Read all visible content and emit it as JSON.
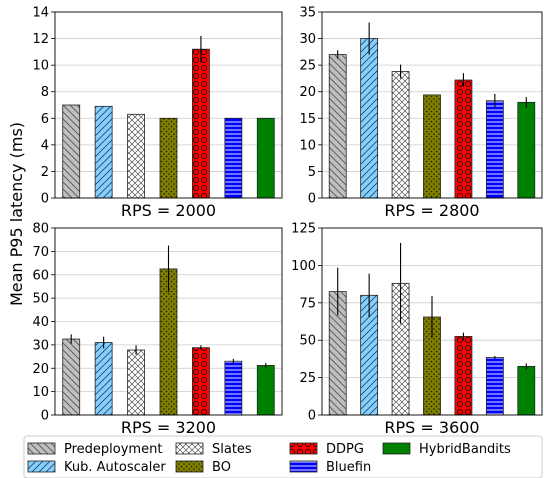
{
  "ylabel": "Mean P95 latency (ms)",
  "chart_data": [
    {
      "type": "bar",
      "title": "RPS = 2000",
      "ylim": [
        0,
        14
      ],
      "yticks": [
        0,
        2,
        4,
        6,
        8,
        10,
        12,
        14
      ],
      "grid": true,
      "series": [
        {
          "name": "Predeployment",
          "value": 7.0,
          "err": 0.0
        },
        {
          "name": "Kub. Autoscaler",
          "value": 6.9,
          "err": 0.0
        },
        {
          "name": "Slates",
          "value": 6.3,
          "err": 0.0
        },
        {
          "name": "BO",
          "value": 6.0,
          "err": 0.0
        },
        {
          "name": "DDPG",
          "value": 11.2,
          "err": 1.0
        },
        {
          "name": "Bluefin",
          "value": 6.0,
          "err": 0.0
        },
        {
          "name": "HybridBandits",
          "value": 6.0,
          "err": 0.0
        }
      ]
    },
    {
      "type": "bar",
      "title": "RPS = 2800",
      "ylim": [
        0,
        35
      ],
      "yticks": [
        0,
        5,
        10,
        15,
        20,
        25,
        30,
        35
      ],
      "grid": true,
      "series": [
        {
          "name": "Predeployment",
          "value": 27.0,
          "err": 0.8
        },
        {
          "name": "Kub. Autoscaler",
          "value": 30.0,
          "err": 3.0
        },
        {
          "name": "Slates",
          "value": 23.8,
          "err": 1.3
        },
        {
          "name": "BO",
          "value": 19.4,
          "err": 0.0
        },
        {
          "name": "DDPG",
          "value": 22.2,
          "err": 1.3
        },
        {
          "name": "Bluefin",
          "value": 18.3,
          "err": 1.3
        },
        {
          "name": "HybridBandits",
          "value": 18.0,
          "err": 1.0
        }
      ]
    },
    {
      "type": "bar",
      "title": "RPS = 3200",
      "ylim": [
        0,
        80
      ],
      "yticks": [
        0,
        10,
        20,
        30,
        40,
        50,
        60,
        70,
        80
      ],
      "grid": true,
      "series": [
        {
          "name": "Predeployment",
          "value": 32.5,
          "err": 2.0
        },
        {
          "name": "Kub. Autoscaler",
          "value": 31.0,
          "err": 2.5
        },
        {
          "name": "Slates",
          "value": 27.8,
          "err": 2.0
        },
        {
          "name": "BO",
          "value": 62.5,
          "err": 10.0
        },
        {
          "name": "DDPG",
          "value": 28.8,
          "err": 1.0
        },
        {
          "name": "Bluefin",
          "value": 23.0,
          "err": 1.0
        },
        {
          "name": "HybridBandits",
          "value": 21.2,
          "err": 1.0
        }
      ]
    },
    {
      "type": "bar",
      "title": "RPS = 3600",
      "ylim": [
        0,
        125
      ],
      "yticks": [
        0,
        25,
        50,
        75,
        100,
        125
      ],
      "grid": true,
      "series": [
        {
          "name": "Predeployment",
          "value": 82.5,
          "err": 16.0
        },
        {
          "name": "Kub. Autoscaler",
          "value": 80.0,
          "err": 14.5
        },
        {
          "name": "Slates",
          "value": 88.0,
          "err": 27.0
        },
        {
          "name": "BO",
          "value": 65.5,
          "err": 14.0
        },
        {
          "name": "DDPG",
          "value": 52.5,
          "err": 2.5
        },
        {
          "name": "Bluefin",
          "value": 38.5,
          "err": 1.0
        },
        {
          "name": "HybridBandits",
          "value": 32.5,
          "err": 2.0
        }
      ]
    }
  ],
  "legend": {
    "placement": "bottom",
    "items": [
      {
        "label": "Predeployment",
        "color": "#bfbfbf",
        "pattern": "diagonal-backslash"
      },
      {
        "label": "Kub. Autoscaler",
        "color": "#87cefa",
        "pattern": "diagonal-slash"
      },
      {
        "label": "Slates",
        "color": "#ffffff",
        "pattern": "crosshatch"
      },
      {
        "label": "BO",
        "color": "#808000",
        "pattern": "dots"
      },
      {
        "label": "DDPG",
        "color": "#ff0000",
        "pattern": "circles"
      },
      {
        "label": "Bluefin",
        "color": "#0000ff",
        "pattern": "horizontal-lines"
      },
      {
        "label": "HybridBandits",
        "color": "#008000",
        "pattern": "solid"
      }
    ]
  }
}
